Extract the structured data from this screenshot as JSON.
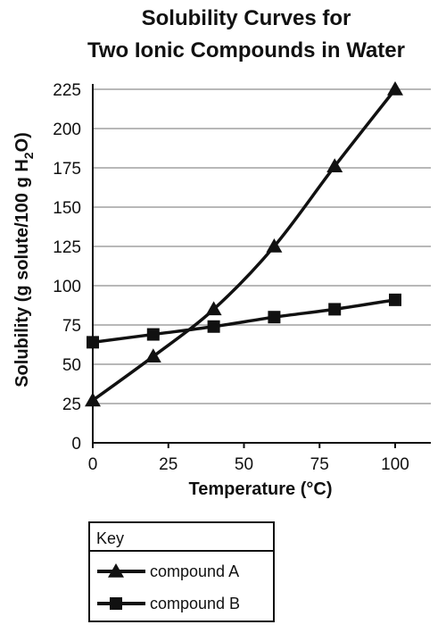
{
  "chart_data": {
    "type": "line",
    "title": [
      "Solubility Curves for",
      "Two Ionic Compounds in Water"
    ],
    "xlabel": "Temperature (°C)",
    "ylabel": {
      "pre": "Solubility (g solute/100 g H",
      "sub": "2",
      "post": "O)"
    },
    "xlim": [
      0,
      100
    ],
    "ylim": [
      0,
      225
    ],
    "xticks": [
      0,
      25,
      50,
      75,
      100
    ],
    "yticks": [
      0,
      25,
      50,
      75,
      100,
      125,
      150,
      175,
      200,
      225
    ],
    "grid": "horizontal",
    "series": [
      {
        "name": "compound A",
        "marker": "triangle",
        "x": [
          0,
          20,
          40,
          60,
          80,
          100
        ],
        "y": [
          27,
          55,
          85,
          125,
          176,
          225
        ]
      },
      {
        "name": "compound B",
        "marker": "square",
        "x": [
          0,
          20,
          40,
          60,
          80,
          100
        ],
        "y": [
          64,
          69,
          74,
          80,
          85,
          91
        ]
      }
    ],
    "legend": {
      "title": "Key",
      "position": "bottom"
    }
  }
}
